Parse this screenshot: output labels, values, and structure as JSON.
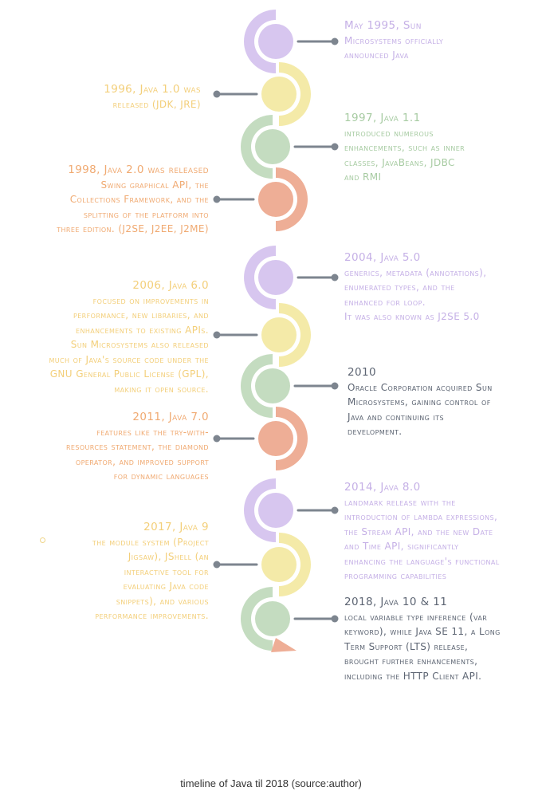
{
  "colors": {
    "purple": "#d7c6ef",
    "yellow": "#f4eaa8",
    "green": "#c4dcc0",
    "orange": "#eeae96",
    "connector": "#7d858f"
  },
  "events": [
    {
      "title": "May 1995, Sun",
      "desc": "Microsystems officially\nannounced Java"
    },
    {
      "title": "1996, Java 1.0 was",
      "desc": "released (JDK, JRE)"
    },
    {
      "title": "1997, Java 1.1",
      "desc": "introduced numerous\nenhancements, such as inner\nclasses, JavaBeans, JDBC\nand RMI"
    },
    {
      "title": "1998, Java 2.0 was released",
      "desc": "Swing graphical API, the\nCollections Framework, and the\nsplitting of the platform into\nthree edition. (J2SE, J2EE, J2ME)"
    },
    {
      "title": "2004, Java 5.0",
      "desc": "generics, metadata (annotations),\nenumerated types, and the\nenhanced for loop.\nIt was also known as J2SE 5.0"
    },
    {
      "title": "2006, Java 6.0",
      "desc": "focused on improvements in\nperformance, new libraries, and\nenhancements to existing APIs.\nSun Microsystems also released\nmuch of Java's source code under the\nGNU General Public License (GPL),\nmaking it open source."
    },
    {
      "title": "2010",
      "desc": "Oracle Corporation acquired Sun\nMicrosystems, gaining control of\nJava and continuing its\ndevelopment."
    },
    {
      "title": "2011, Java 7.0",
      "desc": "features like the try-with-\nresources statement, the diamond\noperator, and improved support\nfor dynamic languages"
    },
    {
      "title": "2014, Java 8.0",
      "desc": "landmark release with the\nintroduction of lambda expressions,\nthe Stream API, and the new Date\nand Time API, significantly\nenhancing the language's functional\nprogramming capabilities"
    },
    {
      "title": "2017, Java 9",
      "desc": "the module system (Project\nJigsaw), JShell (an\ninteractive tool for\nevaluating Java code\nsnippets), and various\nperformance improvements."
    },
    {
      "title": "2018, Java 10 & 11",
      "desc": "local variable type inference (var\nkeyword), while Java SE 11, a Long\nTerm Support (LTS) release,\nbrought further enhancements,\nincluding the HTTP Client API."
    }
  ],
  "caption": "timeline of Java til 2018 (source:author)"
}
